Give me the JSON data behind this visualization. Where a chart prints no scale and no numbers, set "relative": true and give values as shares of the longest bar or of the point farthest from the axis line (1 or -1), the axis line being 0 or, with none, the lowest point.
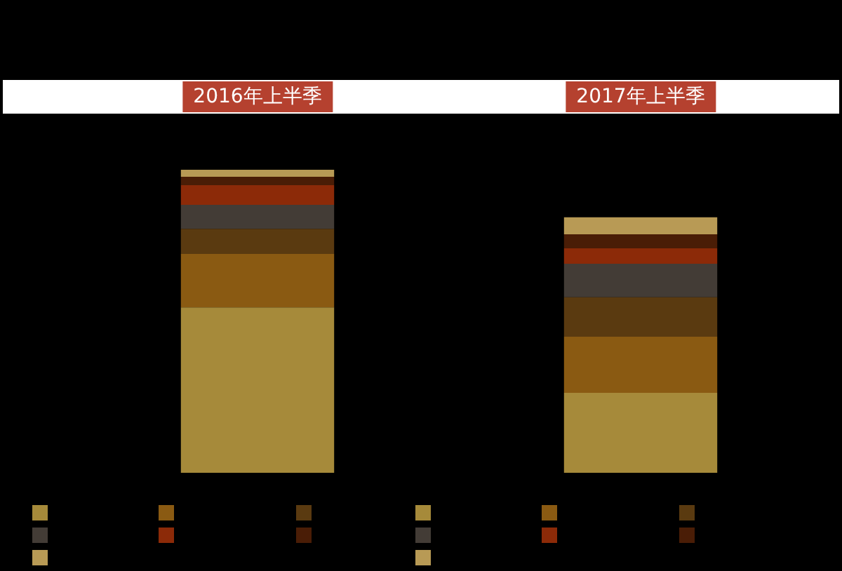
{
  "chart_data": {
    "type": "bar",
    "stacked": true,
    "relative": true,
    "legend": false,
    "categories": [
      "2016年上半季",
      "2017年上半季"
    ],
    "series": [
      {
        "color": "#a68a3a",
        "values": [
          0.546,
          0.264
        ]
      },
      {
        "color": "#8a5a12",
        "values": [
          0.176,
          0.185
        ]
      },
      {
        "color": "#5a3a10",
        "values": [
          0.083,
          0.13
        ]
      },
      {
        "color": "#433c36",
        "values": [
          0.079,
          0.111
        ]
      },
      {
        "color": "#8c2a08",
        "values": [
          0.065,
          0.051
        ]
      },
      {
        "color": "#4a1d06",
        "values": [
          0.028,
          0.046
        ]
      },
      {
        "color": "#b89a55",
        "values": [
          0.023,
          0.056
        ]
      }
    ]
  }
}
